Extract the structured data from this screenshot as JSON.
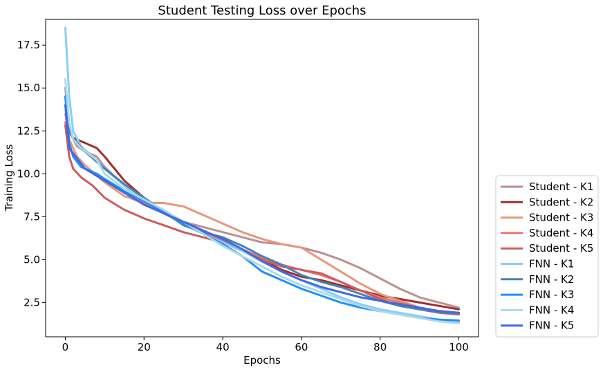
{
  "chart_data": {
    "type": "line",
    "title": "Student Testing Loss over Epochs",
    "xlabel": "Epochs",
    "ylabel": "Training Loss",
    "xlim": [
      -5,
      105
    ],
    "ylim": [
      0.5,
      19.0
    ],
    "xticks": [
      0,
      20,
      40,
      60,
      80,
      100
    ],
    "xtick_labels": [
      "0",
      "20",
      "40",
      "60",
      "80",
      "100"
    ],
    "yticks": [
      2.5,
      5.0,
      7.5,
      10.0,
      12.5,
      15.0,
      17.5
    ],
    "ytick_labels": [
      "2.5",
      "5.0",
      "7.5",
      "10.0",
      "12.5",
      "15.0",
      "17.5"
    ],
    "grid": false,
    "legend_position": "outside-right-bottom",
    "series": [
      {
        "name": "Student - K1",
        "color": "#bc8f8f",
        "points": [
          [
            0,
            15.0
          ],
          [
            1,
            12.6
          ],
          [
            2,
            12.0
          ],
          [
            3,
            11.6
          ],
          [
            5,
            11.3
          ],
          [
            8,
            11.0
          ],
          [
            10,
            10.4
          ],
          [
            15,
            9.3
          ],
          [
            20,
            8.4
          ],
          [
            25,
            7.8
          ],
          [
            30,
            7.2
          ],
          [
            35,
            6.9
          ],
          [
            40,
            6.6
          ],
          [
            45,
            6.3
          ],
          [
            50,
            6.0
          ],
          [
            55,
            5.9
          ],
          [
            60,
            5.7
          ],
          [
            65,
            5.4
          ],
          [
            70,
            5.0
          ],
          [
            75,
            4.5
          ],
          [
            80,
            3.9
          ],
          [
            85,
            3.3
          ],
          [
            90,
            2.8
          ],
          [
            95,
            2.5
          ],
          [
            100,
            2.2
          ]
        ]
      },
      {
        "name": "Student - K2",
        "color": "#a52a2a",
        "points": [
          [
            0,
            14.5
          ],
          [
            1,
            12.5
          ],
          [
            2,
            12.1
          ],
          [
            4,
            11.9
          ],
          [
            8,
            11.5
          ],
          [
            10,
            11.0
          ],
          [
            15,
            9.6
          ],
          [
            20,
            8.6
          ],
          [
            25,
            7.8
          ],
          [
            30,
            7.1
          ],
          [
            35,
            6.6
          ],
          [
            40,
            6.2
          ],
          [
            45,
            5.6
          ],
          [
            50,
            5.0
          ],
          [
            55,
            4.4
          ],
          [
            60,
            4.0
          ],
          [
            65,
            3.8
          ],
          [
            70,
            3.5
          ],
          [
            75,
            3.2
          ],
          [
            80,
            2.9
          ],
          [
            85,
            2.7
          ],
          [
            90,
            2.5
          ],
          [
            95,
            2.3
          ],
          [
            100,
            2.1
          ]
        ]
      },
      {
        "name": "Student - K3",
        "color": "#e9967a",
        "points": [
          [
            0,
            13.5
          ],
          [
            1,
            12.0
          ],
          [
            3,
            11.0
          ],
          [
            5,
            10.5
          ],
          [
            10,
            9.5
          ],
          [
            15,
            8.7
          ],
          [
            20,
            8.3
          ],
          [
            25,
            8.3
          ],
          [
            30,
            8.1
          ],
          [
            35,
            7.6
          ],
          [
            40,
            7.1
          ],
          [
            45,
            6.6
          ],
          [
            50,
            6.2
          ],
          [
            55,
            5.9
          ],
          [
            60,
            5.7
          ],
          [
            65,
            5.0
          ],
          [
            70,
            4.3
          ],
          [
            75,
            3.6
          ],
          [
            80,
            3.0
          ],
          [
            85,
            2.6
          ],
          [
            90,
            2.2
          ],
          [
            95,
            2.0
          ],
          [
            100,
            1.8
          ]
        ]
      },
      {
        "name": "Student - K4",
        "color": "#e9736d",
        "points": [
          [
            0,
            13.0
          ],
          [
            1,
            11.5
          ],
          [
            3,
            10.7
          ],
          [
            5,
            10.3
          ],
          [
            10,
            9.6
          ],
          [
            15,
            8.9
          ],
          [
            20,
            8.3
          ],
          [
            25,
            7.7
          ],
          [
            30,
            7.1
          ],
          [
            35,
            6.6
          ],
          [
            40,
            6.1
          ],
          [
            45,
            5.6
          ],
          [
            50,
            5.1
          ],
          [
            55,
            4.7
          ],
          [
            60,
            4.4
          ],
          [
            65,
            4.1
          ],
          [
            70,
            3.7
          ],
          [
            75,
            3.2
          ],
          [
            80,
            2.8
          ],
          [
            85,
            2.5
          ],
          [
            90,
            2.2
          ],
          [
            95,
            2.0
          ],
          [
            100,
            1.9
          ]
        ]
      },
      {
        "name": "Student - K5",
        "color": "#cd5c5c",
        "points": [
          [
            0,
            12.8
          ],
          [
            1,
            11.0
          ],
          [
            2,
            10.3
          ],
          [
            4,
            9.8
          ],
          [
            7,
            9.3
          ],
          [
            10,
            8.6
          ],
          [
            15,
            7.9
          ],
          [
            20,
            7.4
          ],
          [
            25,
            7.0
          ],
          [
            30,
            6.6
          ],
          [
            35,
            6.3
          ],
          [
            40,
            6.0
          ],
          [
            45,
            5.5
          ],
          [
            50,
            5.0
          ],
          [
            55,
            4.6
          ],
          [
            60,
            4.4
          ],
          [
            65,
            4.2
          ],
          [
            70,
            3.7
          ],
          [
            75,
            3.2
          ],
          [
            80,
            2.7
          ],
          [
            85,
            2.3
          ],
          [
            90,
            2.1
          ],
          [
            95,
            1.9
          ],
          [
            100,
            1.8
          ]
        ]
      },
      {
        "name": "FNN - K1",
        "color": "#87cefa",
        "points": [
          [
            0,
            18.5
          ],
          [
            1,
            14.5
          ],
          [
            2,
            12.5
          ],
          [
            4,
            11.6
          ],
          [
            8,
            10.8
          ],
          [
            10,
            10.3
          ],
          [
            15,
            9.3
          ],
          [
            20,
            8.5
          ],
          [
            25,
            7.8
          ],
          [
            30,
            7.1
          ],
          [
            35,
            6.5
          ],
          [
            40,
            6.0
          ],
          [
            45,
            5.5
          ],
          [
            50,
            4.9
          ],
          [
            55,
            4.3
          ],
          [
            60,
            3.8
          ],
          [
            65,
            3.3
          ],
          [
            70,
            2.8
          ],
          [
            75,
            2.4
          ],
          [
            80,
            2.1
          ],
          [
            85,
            1.9
          ],
          [
            90,
            1.7
          ],
          [
            95,
            1.5
          ],
          [
            100,
            1.4
          ]
        ]
      },
      {
        "name": "FNN - K2",
        "color": "#4682b4",
        "points": [
          [
            0,
            14.0
          ],
          [
            1,
            12.4
          ],
          [
            3,
            11.8
          ],
          [
            5,
            11.3
          ],
          [
            10,
            10.3
          ],
          [
            15,
            9.4
          ],
          [
            20,
            8.6
          ],
          [
            25,
            7.8
          ],
          [
            30,
            7.0
          ],
          [
            35,
            6.6
          ],
          [
            40,
            6.3
          ],
          [
            45,
            5.8
          ],
          [
            50,
            5.2
          ],
          [
            55,
            4.7
          ],
          [
            60,
            4.1
          ],
          [
            65,
            3.7
          ],
          [
            70,
            3.4
          ],
          [
            75,
            3.0
          ],
          [
            80,
            2.6
          ],
          [
            85,
            2.3
          ],
          [
            90,
            2.1
          ],
          [
            95,
            1.95
          ],
          [
            100,
            1.85
          ]
        ]
      },
      {
        "name": "FNN - K3",
        "color": "#1e90ff",
        "points": [
          [
            0,
            14.5
          ],
          [
            1,
            11.8
          ],
          [
            2,
            11.0
          ],
          [
            4,
            10.4
          ],
          [
            8,
            10.0
          ],
          [
            10,
            9.7
          ],
          [
            15,
            9.0
          ],
          [
            20,
            8.4
          ],
          [
            25,
            7.8
          ],
          [
            30,
            7.1
          ],
          [
            35,
            6.5
          ],
          [
            40,
            5.9
          ],
          [
            45,
            5.2
          ],
          [
            50,
            4.3
          ],
          [
            55,
            3.8
          ],
          [
            60,
            3.3
          ],
          [
            65,
            2.9
          ],
          [
            70,
            2.5
          ],
          [
            75,
            2.2
          ],
          [
            80,
            2.0
          ],
          [
            85,
            1.8
          ],
          [
            90,
            1.6
          ],
          [
            95,
            1.5
          ],
          [
            100,
            1.45
          ]
        ]
      },
      {
        "name": "FNN - K4",
        "color": "#add8e6",
        "points": [
          [
            0,
            15.5
          ],
          [
            1,
            13.0
          ],
          [
            2,
            12.0
          ],
          [
            4,
            11.5
          ],
          [
            8,
            10.8
          ],
          [
            10,
            10.0
          ],
          [
            15,
            9.1
          ],
          [
            20,
            8.5
          ],
          [
            25,
            7.9
          ],
          [
            30,
            7.2
          ],
          [
            35,
            6.5
          ],
          [
            40,
            5.8
          ],
          [
            45,
            5.2
          ],
          [
            50,
            4.6
          ],
          [
            55,
            4.0
          ],
          [
            60,
            3.5
          ],
          [
            65,
            3.1
          ],
          [
            70,
            2.7
          ],
          [
            75,
            2.3
          ],
          [
            80,
            2.0
          ],
          [
            85,
            1.8
          ],
          [
            90,
            1.6
          ],
          [
            95,
            1.4
          ],
          [
            100,
            1.3
          ]
        ]
      },
      {
        "name": "FNN - K5",
        "color": "#4169e1",
        "points": [
          [
            0,
            14.0
          ],
          [
            1,
            11.5
          ],
          [
            3,
            10.9
          ],
          [
            5,
            10.3
          ],
          [
            10,
            9.6
          ],
          [
            15,
            8.9
          ],
          [
            20,
            8.2
          ],
          [
            25,
            7.7
          ],
          [
            30,
            7.2
          ],
          [
            35,
            6.7
          ],
          [
            40,
            6.2
          ],
          [
            45,
            5.6
          ],
          [
            50,
            4.9
          ],
          [
            55,
            4.3
          ],
          [
            60,
            3.8
          ],
          [
            65,
            3.4
          ],
          [
            70,
            3.1
          ],
          [
            75,
            2.8
          ],
          [
            80,
            2.6
          ],
          [
            85,
            2.4
          ],
          [
            90,
            2.2
          ],
          [
            95,
            2.0
          ],
          [
            100,
            1.9
          ]
        ]
      }
    ]
  }
}
